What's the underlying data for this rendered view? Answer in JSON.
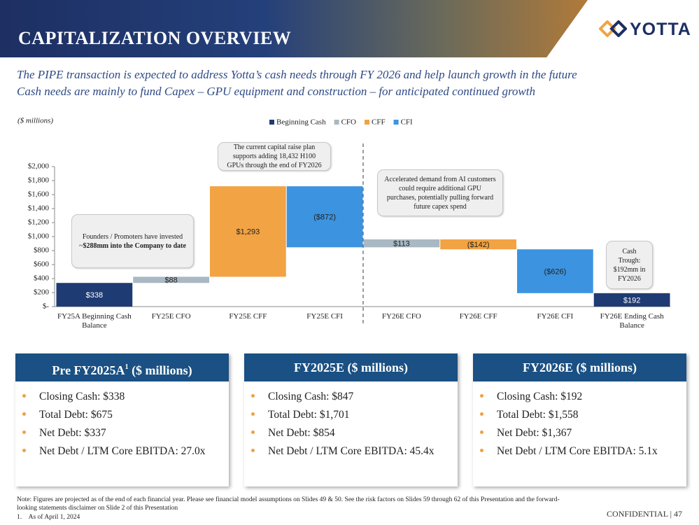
{
  "header": {
    "title": "CAPITALIZATION OVERVIEW",
    "logo": "YOTTA"
  },
  "subtitle": [
    "The PIPE transaction is expected to address Yotta’s cash needs through FY 2026 and help launch growth in the future",
    "Cash needs are mainly to fund Capex – GPU equipment and construction – for anticipated continued growth"
  ],
  "chart_data": {
    "type": "waterfall",
    "y_label": "($ millions)",
    "categories": [
      "FY25A Beginning Cash Balance",
      "FY25E CFO",
      "FY25E CFF",
      "FY25E CFI",
      "FY26E CFO",
      "FY26E CFF",
      "FY26E CFI",
      "FY26E Ending Cash Balance"
    ],
    "series": [
      {
        "name": "Beginning Cash",
        "color": "#1f3b73",
        "values": [
          338,
          null,
          null,
          null,
          null,
          null,
          null,
          192
        ],
        "value_labels": [
          "$338",
          null,
          null,
          null,
          null,
          null,
          null,
          "$192"
        ]
      },
      {
        "name": "CFO",
        "color": "#a9b8c2",
        "values": [
          null,
          88,
          null,
          null,
          113,
          null,
          null,
          null
        ],
        "value_labels": [
          null,
          "$88",
          null,
          null,
          "$113",
          null,
          null,
          null
        ]
      },
      {
        "name": "CFF",
        "color": "#f2a343",
        "values": [
          null,
          null,
          1293,
          null,
          null,
          -142,
          null,
          null
        ],
        "value_labels": [
          null,
          null,
          "$1,293",
          null,
          null,
          "($142)",
          null,
          null
        ]
      },
      {
        "name": "CFI",
        "color": "#3c94e0",
        "values": [
          null,
          null,
          null,
          -872,
          null,
          null,
          -626,
          null
        ],
        "value_labels": [
          null,
          null,
          null,
          "($872)",
          null,
          null,
          "($626)",
          null
        ]
      }
    ],
    "ylim": [
      0,
      2000
    ],
    "yticks": [
      {
        "value": 0,
        "label": "$-"
      },
      {
        "value": 200,
        "label": "$200"
      },
      {
        "value": 400,
        "label": "$400"
      },
      {
        "value": 600,
        "label": "$600"
      },
      {
        "value": 800,
        "label": "$800"
      },
      {
        "value": 1000,
        "label": "$1,000"
      },
      {
        "value": 1200,
        "label": "$1,200"
      },
      {
        "value": 1400,
        "label": "$1,400"
      },
      {
        "value": 1600,
        "label": "$1,600"
      },
      {
        "value": 1800,
        "label": "$1,800"
      },
      {
        "value": 2000,
        "label": "$2,000"
      }
    ],
    "grid": false,
    "legend": "top",
    "annotations": [
      {
        "text": "Founders / Promoters have invested ~",
        "bold": "$288mm into the Company to date"
      },
      {
        "text": "The current capital raise plan supports adding 18,432 H100 GPUs through the end of FY2026"
      },
      {
        "text": "Accelerated demand from AI customers could require additional GPU purchases, potentially pulling forward future capex spend"
      },
      {
        "text": "Cash Trough: $192mm in FY2026"
      }
    ]
  },
  "summary": [
    {
      "title": "Pre FY2025A",
      "sup": "1",
      "suffix": " ($ millions)",
      "items": [
        "Closing Cash: $338",
        "Total Debt: $675",
        "Net Debt: $337",
        "Net Debt / LTM Core EBITDA: 27.0x"
      ]
    },
    {
      "title": "FY2025E ($ millions)",
      "items": [
        "Closing Cash: $847",
        "Total Debt: $1,701",
        "Net Debt: $854",
        "Net Debt / LTM Core EBITDA: 45.4x"
      ]
    },
    {
      "title": "FY2026E ($ millions)",
      "items": [
        "Closing Cash: $192",
        "Total Debt: $1,558",
        "Net Debt: $1,367",
        "Net Debt / LTM Core EBITDA: 5.1x"
      ]
    }
  ],
  "footer": {
    "note": "Note: Figures are projected as of the end of each financial year. Please see financial model assumptions on Slides 49 & 50. See the risk factors on Slides 59 through 62 of this Presentation and the forward-looking statements disclaimer on Slide 2 of this Presentation",
    "footnote_number": "1.",
    "footnote": "As of April 1, 2024",
    "confidential": "CONFIDENTIAL | 47"
  }
}
